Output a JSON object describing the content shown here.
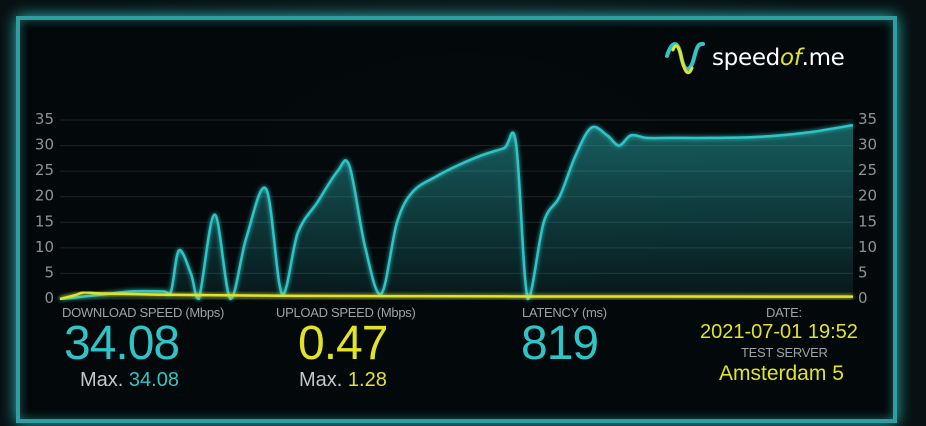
{
  "logo": {
    "text_main": "speed",
    "text_of": "of",
    "text_end": ".me"
  },
  "colors": {
    "download": "#2fc4c6",
    "upload": "#e2e226",
    "frame": "#2f9ea0"
  },
  "chart_data": {
    "type": "area",
    "ylim": [
      0,
      35
    ],
    "yticks": [
      "0",
      "5",
      "10",
      "15",
      "20",
      "25",
      "30",
      "35"
    ],
    "grid": true,
    "series": [
      {
        "name": "DOWNLOAD SPEED (Mbps)",
        "color": "#2fc4c6",
        "x": [
          0,
          5,
          9,
          13,
          14,
          15,
          16.5,
          17.5,
          19.5,
          21.5,
          23.5,
          26,
          28,
          30,
          32.5,
          35,
          36.5,
          38.5,
          40.5,
          42.5,
          44.5,
          47.5,
          50,
          53,
          56,
          57.5,
          59,
          61,
          63,
          65,
          67,
          69,
          70.5,
          72,
          74,
          77,
          82,
          88,
          94,
          100
        ],
        "values": [
          0,
          0.8,
          1.5,
          1.5,
          1.5,
          9.5,
          5,
          0,
          16.5,
          0,
          12,
          21.5,
          1,
          13,
          19,
          25,
          26,
          10,
          1,
          15,
          21,
          24,
          26,
          28,
          29.5,
          30.5,
          0,
          15,
          20,
          28,
          33.5,
          32,
          30,
          32,
          31.5,
          31.5,
          31.5,
          31.7,
          32.5,
          34
        ]
      },
      {
        "name": "UPLOAD SPEED (Mbps)",
        "color": "#e2e226",
        "x": [
          0,
          2,
          3,
          5,
          8,
          15,
          30,
          60,
          100
        ],
        "values": [
          0,
          0.8,
          1.28,
          1.1,
          1,
          0.8,
          0.6,
          0.5,
          0.47
        ]
      }
    ]
  },
  "stats": {
    "download": {
      "label": "DOWNLOAD SPEED (Mbps)",
      "value": "34.08",
      "max_label": "Max.",
      "max_value": "34.08"
    },
    "upload": {
      "label": "UPLOAD SPEED (Mbps)",
      "value": "0.47",
      "max_label": "Max.",
      "max_value": "1.28"
    },
    "latency": {
      "label": "LATENCY (ms)",
      "value": "819"
    },
    "date": {
      "label": "DATE:",
      "value": "2021-07-01 19:52"
    },
    "server": {
      "label": "TEST SERVER",
      "value": "Amsterdam 5"
    }
  }
}
